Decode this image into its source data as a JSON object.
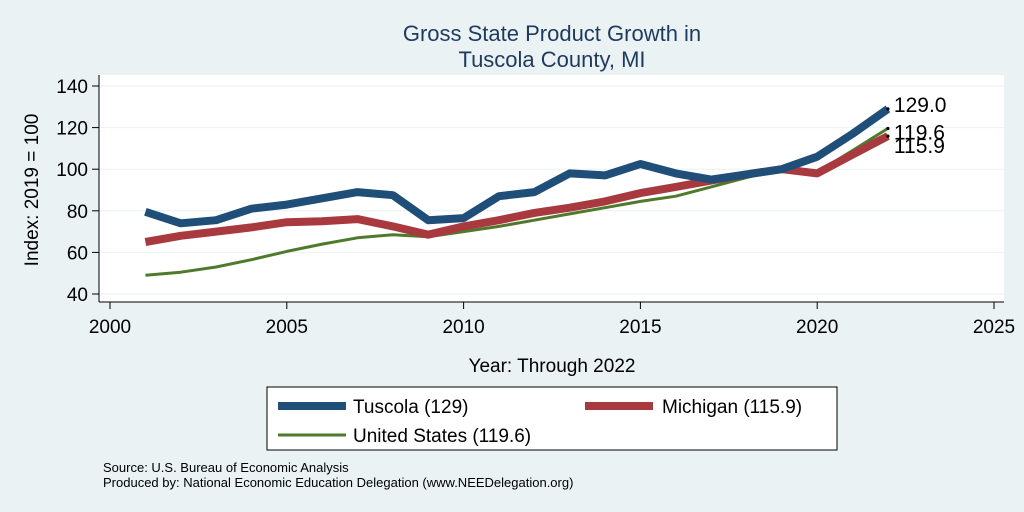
{
  "chart_data": {
    "type": "line",
    "title_line1": "Gross State Product Growth in",
    "title_line2": "Tuscola County, MI",
    "xlabel": "Year: Through 2022",
    "ylabel": "Index: 2019 = 100",
    "xlim": [
      2000,
      2025
    ],
    "ylim": [
      40,
      140
    ],
    "xticks": [
      2000,
      2005,
      2010,
      2015,
      2020,
      2025
    ],
    "yticks": [
      40,
      60,
      80,
      100,
      120,
      140
    ],
    "grid": "horizontal",
    "x": [
      2001,
      2002,
      2003,
      2004,
      2005,
      2006,
      2007,
      2008,
      2009,
      2010,
      2011,
      2012,
      2013,
      2014,
      2015,
      2016,
      2017,
      2018,
      2019,
      2020,
      2021,
      2022
    ],
    "series": [
      {
        "name": "Tuscola",
        "legend": "Tuscola  (129)",
        "color": "#1f4e79",
        "end_label": "129.0",
        "values": [
          79.5,
          74.0,
          75.5,
          81.0,
          83.0,
          86.0,
          89.0,
          87.5,
          75.5,
          76.5,
          87.0,
          89.0,
          98.0,
          97.0,
          102.5,
          98.0,
          95.0,
          97.5,
          100.0,
          106.0,
          117.0,
          129.0
        ]
      },
      {
        "name": "Michigan",
        "legend": "Michigan (115.9)",
        "color": "#a83a3f",
        "end_label": "115.9",
        "values": [
          65.0,
          68.0,
          70.0,
          72.0,
          74.5,
          75.0,
          76.0,
          72.5,
          68.5,
          72.5,
          75.5,
          79.0,
          81.5,
          84.5,
          88.5,
          91.5,
          94.5,
          97.5,
          100.0,
          98.0,
          107.0,
          115.9
        ]
      },
      {
        "name": "United States",
        "legend": "United States (119.6)",
        "color": "#4f7a2b",
        "end_label": "119.6",
        "values": [
          49.0,
          50.5,
          53.0,
          56.5,
          60.5,
          64.0,
          67.0,
          68.5,
          67.5,
          70.0,
          72.5,
          75.5,
          78.5,
          81.5,
          84.5,
          87.0,
          91.5,
          96.0,
          100.0,
          98.5,
          109.0,
          119.6
        ]
      }
    ],
    "legend_position": "bottom"
  },
  "notes": {
    "source": "Source: U.S. Bureau of Economic Analysis",
    "produced_by": "Produced by: National Economic Education Delegation (www.NEEDelegation.org)"
  }
}
